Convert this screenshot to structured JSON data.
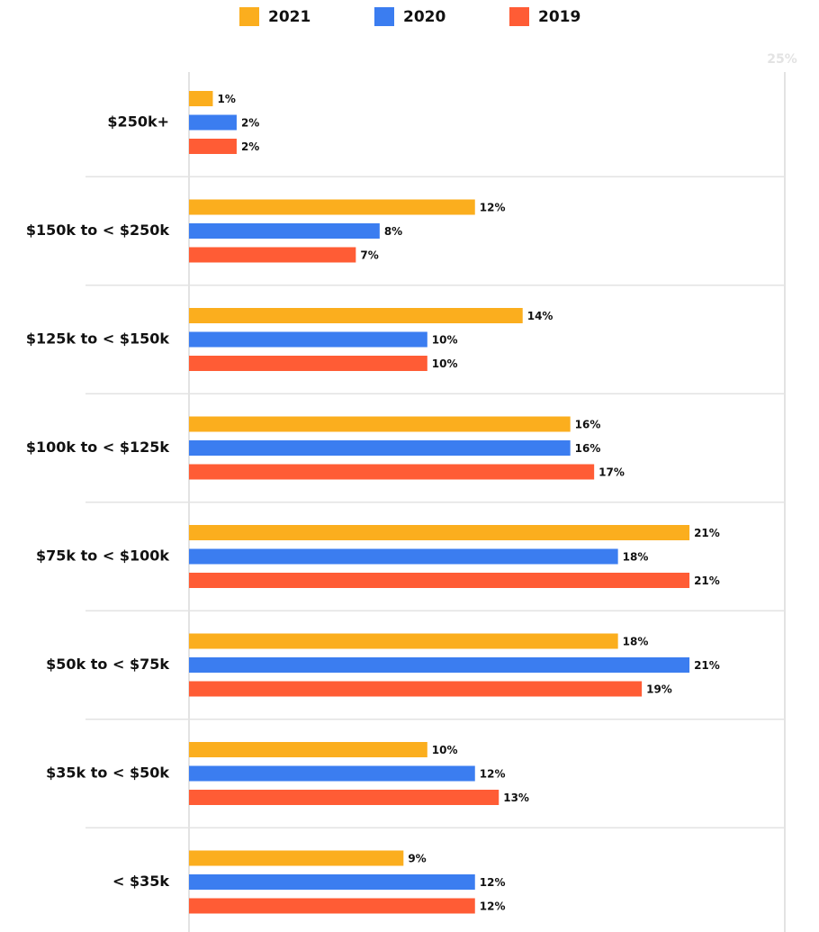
{
  "chart_data": {
    "type": "barh",
    "categories": [
      "$250k+",
      "$150k to < $250k",
      "$125k to < $150k",
      "$100k to < $125k",
      "$75k to < $100k",
      "$50k to < $75k",
      "$35k to < $50k",
      "< $35k"
    ],
    "series": [
      {
        "name": "2021",
        "color": "#fbae1e",
        "values": [
          1,
          12,
          14,
          16,
          21,
          18,
          10,
          9
        ],
        "value_labels": [
          "1%",
          "12%",
          "14%",
          "16%",
          "21%",
          "18%",
          "10%",
          "9%"
        ]
      },
      {
        "name": "2020",
        "color": "#3b7df0",
        "values": [
          2,
          8,
          10,
          16,
          18,
          21,
          12,
          12
        ],
        "value_labels": [
          "2%",
          "8%",
          "10%",
          "16%",
          "18%",
          "21%",
          "12%",
          "12%"
        ]
      },
      {
        "name": "2019",
        "color": "#ff5c35",
        "values": [
          2,
          7,
          10,
          17,
          21,
          19,
          13,
          12
        ],
        "value_labels": [
          "2%",
          "7%",
          "10%",
          "17%",
          "21%",
          "19%",
          "13%",
          "12%"
        ]
      }
    ],
    "xlim": [
      0,
      25
    ],
    "xticks": [
      {
        "value": 25,
        "label": "25%"
      }
    ],
    "legend": "top"
  }
}
